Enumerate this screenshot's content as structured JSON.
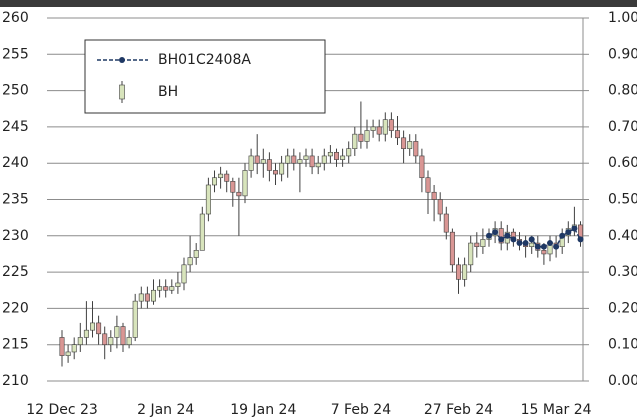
{
  "chart_data": {
    "type": "candlestick",
    "categories": [
      "12 Dec 23",
      null,
      null,
      null,
      null,
      null,
      null,
      null,
      null,
      null,
      null,
      null,
      null,
      null,
      null,
      null,
      null,
      "2 Jan 24",
      null,
      null,
      null,
      null,
      null,
      null,
      null,
      null,
      null,
      null,
      null,
      null,
      null,
      null,
      null,
      "19 Jan 24",
      null,
      null,
      null,
      null,
      null,
      null,
      null,
      null,
      null,
      null,
      null,
      null,
      null,
      null,
      null,
      "7 Feb 24",
      null,
      null,
      null,
      null,
      null,
      null,
      null,
      null,
      null,
      null,
      null,
      null,
      null,
      null,
      null,
      "27 Feb 24",
      null,
      null,
      null,
      null,
      null,
      null,
      null,
      null,
      null,
      null,
      null,
      null,
      null,
      null,
      null,
      "15 Mar 24",
      null,
      null,
      null,
      null
    ],
    "series": [
      {
        "name": "BH01C2408A",
        "type": "line",
        "color": "#1f3864",
        "values": [
          null,
          null,
          null,
          null,
          null,
          null,
          null,
          null,
          null,
          null,
          null,
          null,
          null,
          null,
          null,
          null,
          null,
          null,
          null,
          null,
          null,
          null,
          null,
          null,
          null,
          null,
          null,
          null,
          null,
          null,
          null,
          null,
          null,
          null,
          null,
          null,
          null,
          null,
          null,
          null,
          null,
          null,
          null,
          null,
          null,
          null,
          null,
          null,
          null,
          null,
          null,
          null,
          null,
          null,
          null,
          null,
          null,
          null,
          null,
          null,
          null,
          null,
          null,
          null,
          null,
          null,
          null,
          null,
          null,
          null,
          230,
          230.5,
          229.5,
          230,
          229.5,
          229,
          229,
          229.5,
          228.5,
          228.5,
          229,
          228.5,
          230,
          230.5,
          231,
          229.5
        ]
      },
      {
        "name": "BH",
        "type": "candlestick",
        "up_color": "#d8e4bc",
        "down_color": "#d99694",
        "edge_color": "#404040",
        "open": [
          216,
          213.5,
          214,
          215,
          216,
          217,
          218,
          216.5,
          215,
          216,
          217.5,
          215,
          216,
          221,
          222,
          221,
          222.5,
          223,
          222.5,
          223,
          223.5,
          226,
          227,
          228,
          233,
          237,
          238,
          238.5,
          237.5,
          236,
          235.5,
          239,
          241,
          240,
          240.5,
          239,
          238.5,
          240,
          241,
          240,
          240.5,
          241,
          239.5,
          240,
          241,
          241.5,
          240.5,
          241,
          242,
          244,
          243,
          244.5,
          245,
          244,
          246,
          244.5,
          243.5,
          242,
          243,
          241,
          238,
          236,
          235,
          233,
          230.5,
          226,
          224,
          226,
          229,
          228.5,
          229.5,
          230,
          231,
          229,
          230.5,
          229.5,
          229,
          228.5,
          229,
          228,
          227.5,
          229,
          228.5,
          230,
          231,
          231.5
        ],
        "high": [
          217,
          215,
          216,
          218,
          221,
          221,
          219,
          217.5,
          217,
          219,
          218,
          217,
          222,
          223,
          223,
          224,
          224,
          224,
          224,
          225,
          227,
          230,
          229,
          234,
          238,
          239,
          239.5,
          239,
          238,
          238,
          240,
          242,
          244,
          242,
          241.5,
          240,
          241,
          242,
          242,
          241.5,
          242,
          242,
          241,
          242,
          242.5,
          242,
          242,
          243,
          245,
          248.5,
          246,
          246,
          246,
          247,
          247,
          246.5,
          244.5,
          244,
          244,
          242,
          239,
          237,
          236,
          234,
          231,
          227,
          227,
          230,
          230.5,
          231,
          231,
          232,
          232,
          231.5,
          231,
          230.5,
          230,
          230,
          230,
          229,
          230,
          230,
          231,
          232,
          234,
          232
        ],
        "low": [
          212,
          212.5,
          213,
          214,
          215,
          216,
          215,
          213,
          214,
          214.5,
          214,
          214.5,
          215.5,
          220,
          220,
          220.5,
          221.5,
          221.5,
          222,
          222,
          222.5,
          225,
          226,
          228.5,
          232,
          236,
          236.5,
          236,
          234,
          230,
          234.5,
          238,
          238.5,
          238,
          237.5,
          237,
          237.5,
          238,
          239,
          236,
          239.5,
          238.5,
          238.5,
          239,
          240,
          239.5,
          239.5,
          240,
          241,
          242,
          242,
          243.5,
          243,
          243,
          243.5,
          242.5,
          240,
          241,
          240,
          236,
          233,
          232,
          232,
          229.5,
          225,
          222,
          223,
          225,
          227,
          227.5,
          228.5,
          229,
          228,
          228,
          228.5,
          228,
          227,
          227.5,
          227,
          226,
          226.5,
          227,
          227.5,
          229,
          230,
          228.5
        ],
        "close": [
          213.5,
          214,
          215,
          216,
          217,
          218,
          216.5,
          215,
          216,
          217.5,
          215,
          216,
          221,
          222,
          221,
          222.5,
          223,
          222.5,
          223,
          223.5,
          226,
          227,
          228,
          233,
          237,
          238,
          238.5,
          237.5,
          236,
          235.5,
          239,
          241,
          240,
          240.5,
          239,
          238.5,
          240,
          241,
          240,
          240.5,
          241,
          239.5,
          240,
          241,
          241.5,
          240.5,
          241,
          242,
          244,
          243,
          244.5,
          245,
          244,
          246,
          244.5,
          243.5,
          242,
          243,
          241,
          238,
          236,
          235,
          233,
          230.5,
          226,
          224,
          226,
          229,
          228.5,
          229.5,
          230,
          231,
          229,
          230.5,
          229.5,
          229,
          228.5,
          229,
          228,
          227.5,
          229,
          228.5,
          230,
          231,
          231.5,
          229.5
        ]
      }
    ],
    "ylim": [
      210,
      260
    ],
    "yticks": [
      210,
      215,
      220,
      225,
      230,
      235,
      240,
      245,
      250,
      255,
      260
    ],
    "y2lim": [
      0,
      1
    ],
    "y2ticks": [
      {
        "value": 0,
        "label": "0.00"
      },
      {
        "value": 0.1,
        "label": "0.10"
      },
      {
        "value": 0.2,
        "label": "0.20"
      },
      {
        "value": 0.3,
        "label": "0.30"
      },
      {
        "value": 0.4,
        "label": "0.40"
      },
      {
        "value": 0.5,
        "label": "0.50"
      },
      {
        "value": 0.6,
        "label": "0.60"
      },
      {
        "value": 0.7,
        "label": "0.70"
      },
      {
        "value": 0.8,
        "label": "0.80"
      },
      {
        "value": 0.9,
        "label": "0.90"
      },
      {
        "value": 1,
        "label": "1.00"
      }
    ],
    "grid": true,
    "legend": "upper left"
  }
}
